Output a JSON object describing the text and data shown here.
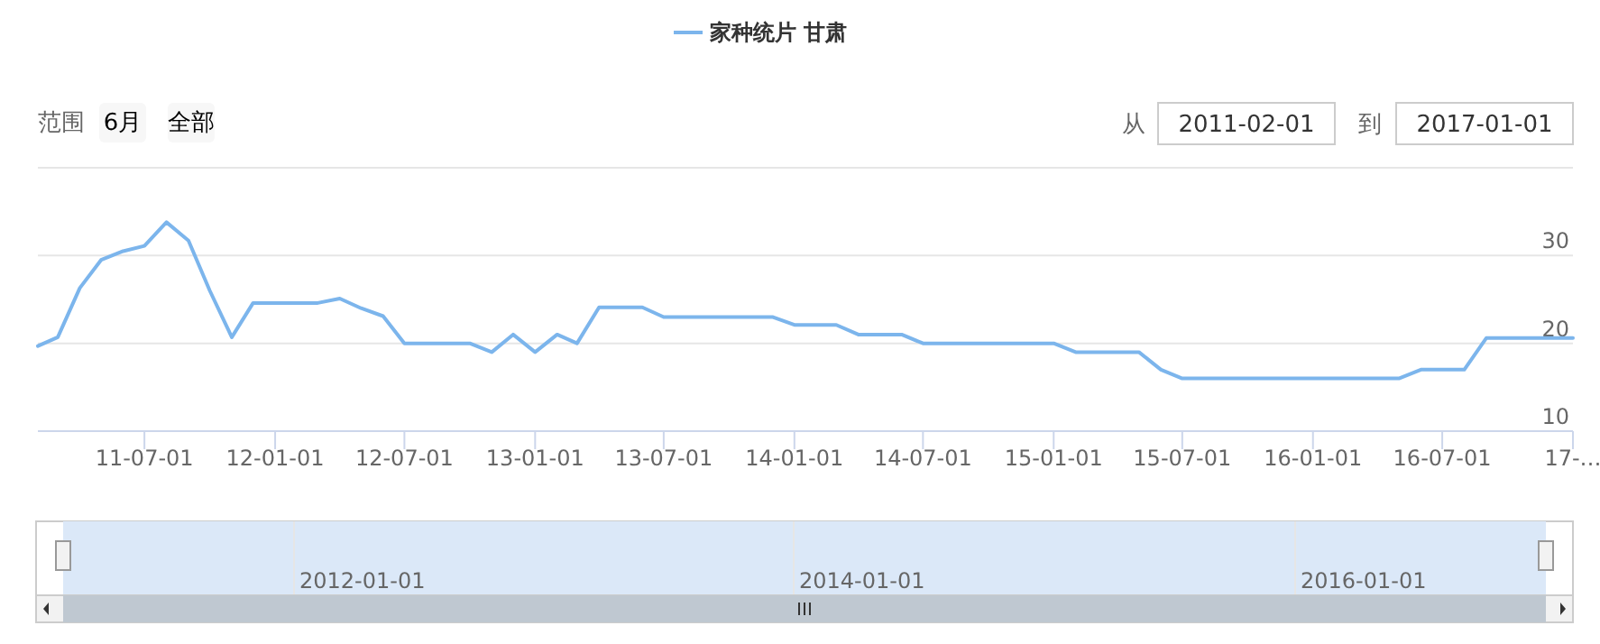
{
  "chart_data": {
    "type": "line",
    "x": [
      "2011-02",
      "2011-03",
      "2011-04",
      "2011-05",
      "2011-06",
      "2011-07",
      "2011-08",
      "2011-09",
      "2011-10",
      "2011-11",
      "2011-12",
      "2012-01",
      "2012-02",
      "2012-03",
      "2012-04",
      "2012-05",
      "2012-06",
      "2012-07",
      "2012-08",
      "2012-09",
      "2012-10",
      "2012-11",
      "2012-12",
      "2013-01",
      "2013-02",
      "2013-03",
      "2013-04",
      "2013-05",
      "2013-06",
      "2013-07",
      "2013-08",
      "2013-09",
      "2013-10",
      "2013-11",
      "2013-12",
      "2014-01",
      "2014-02",
      "2014-03",
      "2014-04",
      "2014-05",
      "2014-06",
      "2014-07",
      "2014-08",
      "2014-09",
      "2014-10",
      "2014-11",
      "2014-12",
      "2015-01",
      "2015-02",
      "2015-03",
      "2015-04",
      "2015-05",
      "2015-06",
      "2015-07",
      "2015-08",
      "2015-09",
      "2015-10",
      "2015-11",
      "2015-12",
      "2016-01",
      "2016-02",
      "2016-03",
      "2016-04",
      "2016-05",
      "2016-06",
      "2016-07",
      "2016-08",
      "2016-09",
      "2016-10",
      "2016-11",
      "2016-12",
      "2017-01"
    ],
    "series": [
      {
        "name": "家种统片 甘肃",
        "color": "#7cb5ec",
        "values": [
          19.7,
          20.7,
          26.3,
          29.5,
          30.5,
          31.1,
          33.8,
          31.7,
          26,
          20.7,
          24.6,
          24.6,
          24.6,
          24.6,
          25.1,
          24,
          23.1,
          20,
          20,
          20,
          20,
          19,
          21,
          19,
          21,
          20,
          24.1,
          24.1,
          24.1,
          23,
          23,
          23,
          23,
          23,
          23,
          22.1,
          22.1,
          22.1,
          21,
          21,
          21,
          20,
          20,
          20,
          20,
          20,
          20,
          20,
          19,
          19,
          19,
          19,
          17,
          16,
          16,
          16,
          16,
          16,
          16,
          16,
          16,
          16,
          16,
          16,
          17,
          17,
          17,
          20.6,
          20.6,
          20.6,
          20.6,
          20.6
        ]
      }
    ],
    "xlim": [
      "2011-02",
      "2017-01"
    ],
    "xticks": [
      {
        "value": "2011-07",
        "label": "11-07-01"
      },
      {
        "value": "2012-01",
        "label": "12-01-01"
      },
      {
        "value": "2012-07",
        "label": "12-07-01"
      },
      {
        "value": "2013-01",
        "label": "13-01-01"
      },
      {
        "value": "2013-07",
        "label": "13-07-01"
      },
      {
        "value": "2014-01",
        "label": "14-01-01"
      },
      {
        "value": "2014-07",
        "label": "14-07-01"
      },
      {
        "value": "2015-01",
        "label": "15-01-01"
      },
      {
        "value": "2015-07",
        "label": "15-07-01"
      },
      {
        "value": "2016-01",
        "label": "16-01-01"
      },
      {
        "value": "2016-07",
        "label": "16-07-01"
      },
      {
        "value": "2017-01",
        "label": "17-…"
      }
    ],
    "ylim": [
      10,
      40
    ],
    "yticks": [
      10,
      20,
      30,
      {
        "value": 40,
        "label": null
      }
    ],
    "grid": "y",
    "legend": "top",
    "marker": "none",
    "line_style": "solid",
    "annotations": [
      "范围",
      "6月",
      "全部",
      "从",
      "2011-02-01",
      "到",
      "2017-01-01",
      "2012-01-01",
      "2014-01-01",
      "2016-01-01"
    ]
  }
}
